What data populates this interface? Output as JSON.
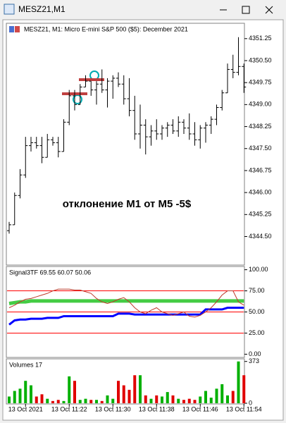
{
  "window": {
    "title": "MESZ21,M1"
  },
  "chart_data": [
    {
      "type": "ohlc",
      "title": "MESZ21, M1:  Micro E-mini S&P 500 ($5): December 2021",
      "annotation": "отклонение М1 от М5 -5$",
      "color": "#000000",
      "open": [
        4344.7,
        4344.9,
        4345.9,
        4346.6,
        4347.6,
        4347.7,
        4347.6,
        4347.2,
        4347.8,
        4347.7,
        4347.4,
        4348.4,
        4349.3,
        4349.0,
        4349.6,
        4349.8,
        4349.5,
        4349.7,
        4349.5,
        4349.8,
        4349.9,
        4349.7,
        4349.2,
        4348.8,
        4348.0,
        4348.3,
        4347.9,
        4348.1,
        4348.0,
        4348.2,
        4348.3,
        4348.1,
        4348.4,
        4348.2,
        4348.0,
        4347.8,
        4348.2,
        4348.3,
        4348.5,
        4348.9,
        4349.4,
        4350.2,
        4350.1,
        4350.3
      ],
      "high": [
        4345.0,
        4346.0,
        4346.8,
        4347.9,
        4347.9,
        4347.9,
        4347.9,
        4348.0,
        4347.9,
        4347.9,
        4348.5,
        4349.5,
        4349.5,
        4349.7,
        4350.0,
        4349.8,
        4349.8,
        4350.2,
        4349.9,
        4350.0,
        4350.1,
        4350.0,
        4349.9,
        4349.3,
        4349.0,
        4348.5,
        4348.3,
        4348.5,
        4348.3,
        4348.4,
        4348.5,
        4348.6,
        4348.5,
        4348.7,
        4348.4,
        4348.3,
        4348.4,
        4348.6,
        4349.0,
        4349.5,
        4350.4,
        4350.7,
        4351.3,
        4350.4
      ],
      "low": [
        4344.6,
        4344.9,
        4345.8,
        4346.5,
        4347.4,
        4347.5,
        4347.0,
        4347.2,
        4347.6,
        4347.2,
        4347.4,
        4348.3,
        4348.8,
        4349.0,
        4349.6,
        4349.3,
        4349.0,
        4349.4,
        4348.9,
        4349.2,
        4349.6,
        4349.0,
        4348.6,
        4347.8,
        4347.5,
        4347.3,
        4347.6,
        4347.8,
        4347.8,
        4347.9,
        4348.0,
        4347.9,
        4348.0,
        4347.8,
        4347.6,
        4347.5,
        4347.7,
        4348.0,
        4348.3,
        4348.8,
        4349.4,
        4349.9,
        4350.0,
        4349.4
      ],
      "close": [
        4344.9,
        4345.9,
        4346.6,
        4347.6,
        4347.7,
        4347.6,
        4347.2,
        4347.8,
        4347.7,
        4347.4,
        4348.4,
        4349.3,
        4349.0,
        4349.6,
        4349.8,
        4349.5,
        4349.7,
        4349.5,
        4349.8,
        4349.9,
        4349.7,
        4349.2,
        4348.8,
        4348.0,
        4348.3,
        4347.9,
        4348.1,
        4348.0,
        4348.2,
        4348.3,
        4348.1,
        4348.4,
        4348.2,
        4348.0,
        4347.8,
        4348.2,
        4348.3,
        4348.5,
        4348.9,
        4349.4,
        4350.2,
        4350.1,
        4350.3,
        4349.6
      ],
      "ylim": [
        4343.55,
        4351.75
      ],
      "yticks": [
        4351.25,
        {
          "value": 4350.5,
          "label": "4350.50"
        },
        4349.75,
        {
          "value": 4349,
          "label": "4349.00"
        },
        4348.25,
        {
          "value": 4347.5,
          "label": "4347.50"
        },
        4346.75,
        {
          "value": 4346,
          "label": "4346.00"
        },
        4345.25,
        {
          "value": 4344.5,
          "label": "4344.50"
        }
      ]
    },
    {
      "type": "line",
      "title": "Signal3TF 69.55 60.07 50.06",
      "series": [
        {
          "color": "#44cc44",
          "width": 5,
          "values": [
            60,
            61,
            62,
            62,
            63,
            63,
            63,
            63,
            63,
            63,
            63,
            63,
            63,
            63,
            63,
            63,
            63,
            63,
            63,
            63,
            63,
            63,
            63,
            63,
            63,
            63,
            63,
            63,
            63,
            63,
            63,
            63,
            63,
            63,
            63,
            63,
            63,
            63,
            63,
            63,
            63,
            63,
            63,
            63
          ]
        },
        {
          "color": "#0000ff",
          "width": 3,
          "values": [
            35,
            40,
            41,
            41,
            42,
            42,
            42,
            43,
            43,
            43,
            45,
            45,
            45,
            45,
            45,
            45,
            45,
            45,
            45,
            45,
            48,
            48,
            48,
            47,
            47,
            47,
            47,
            47,
            47,
            47,
            47,
            47,
            47,
            47,
            47,
            47,
            53,
            53,
            53,
            53,
            55,
            55,
            55,
            55
          ]
        },
        {
          "color": "#c0392b",
          "width": 1,
          "values": [
            55,
            58,
            62,
            65,
            66,
            68,
            70,
            72,
            75,
            77,
            77,
            77,
            76,
            76,
            74,
            72,
            66,
            62,
            60,
            62,
            65,
            67,
            62,
            55,
            50,
            48,
            52,
            55,
            50,
            48,
            46,
            48,
            50,
            45,
            44,
            46,
            50,
            55,
            62,
            70,
            75,
            75,
            62,
            58
          ]
        }
      ],
      "levels": [
        75,
        50,
        25
      ],
      "level_color": "#ff0000",
      "ylim": [
        -3,
        103
      ],
      "yticks": [
        {
          "value": 100,
          "label": "100.00"
        },
        {
          "value": 75,
          "label": "75.00"
        },
        {
          "value": 50,
          "label": "50.00"
        },
        {
          "value": 25,
          "label": "25.00"
        },
        {
          "value": 0,
          "label": "0.00"
        }
      ]
    },
    {
      "type": "bar",
      "title": "Volumes 17",
      "up_color": "#00b000",
      "down_color": "#e00000",
      "categories": [
        null,
        null,
        null,
        "13 Oct 2021",
        null,
        null,
        null,
        null,
        null,
        null,
        null,
        "13 Oct 11:22",
        null,
        null,
        null,
        null,
        null,
        null,
        null,
        "13 Oct 11:30",
        null,
        null,
        null,
        null,
        null,
        null,
        null,
        "13 Oct 11:38",
        null,
        null,
        null,
        null,
        null,
        null,
        null,
        "13 Oct 11:46",
        null,
        null,
        null,
        null,
        null,
        null,
        null,
        "13 Oct 11:54"
      ],
      "values": [
        60,
        110,
        130,
        200,
        160,
        60,
        80,
        40,
        20,
        30,
        20,
        240,
        200,
        30,
        40,
        30,
        30,
        20,
        70,
        40,
        200,
        160,
        120,
        250,
        250,
        70,
        40,
        70,
        60,
        100,
        70,
        40,
        30,
        40,
        30,
        60,
        110,
        50,
        130,
        170,
        70,
        110,
        373,
        250
      ],
      "ylim": [
        0,
        390
      ],
      "yticks": [
        373,
        0
      ]
    }
  ]
}
